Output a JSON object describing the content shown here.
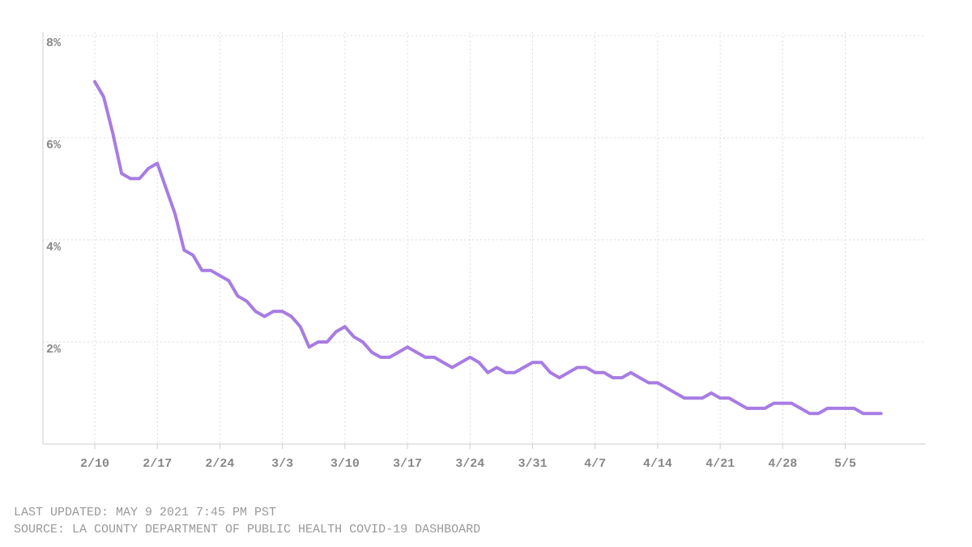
{
  "chart_data": {
    "type": "line",
    "categories": [
      "2/10",
      null,
      null,
      null,
      null,
      null,
      null,
      "2/17",
      null,
      null,
      null,
      null,
      null,
      null,
      "2/24",
      null,
      null,
      null,
      null,
      null,
      null,
      "3/3",
      null,
      null,
      null,
      null,
      null,
      null,
      "3/10",
      null,
      null,
      null,
      null,
      null,
      null,
      "3/17",
      null,
      null,
      null,
      null,
      null,
      null,
      "3/24",
      null,
      null,
      null,
      null,
      null,
      null,
      "3/31",
      null,
      null,
      null,
      null,
      null,
      null,
      "4/7",
      null,
      null,
      null,
      null,
      null,
      null,
      "4/14",
      null,
      null,
      null,
      null,
      null,
      null,
      "4/21",
      null,
      null,
      null,
      null,
      null,
      null,
      "4/28",
      null,
      null,
      null,
      null,
      null,
      null,
      "5/5",
      null,
      null,
      null,
      null
    ],
    "values": [
      7.1,
      6.8,
      6.1,
      5.3,
      5.2,
      5.2,
      5.4,
      5.5,
      5.0,
      4.5,
      3.8,
      3.7,
      3.4,
      3.4,
      3.3,
      3.2,
      2.9,
      2.8,
      2.6,
      2.5,
      2.6,
      2.6,
      2.5,
      2.3,
      1.9,
      2.0,
      2.0,
      2.2,
      2.3,
      2.1,
      2.0,
      1.8,
      1.7,
      1.7,
      1.8,
      1.9,
      1.8,
      1.7,
      1.7,
      1.6,
      1.5,
      1.6,
      1.7,
      1.6,
      1.4,
      1.5,
      1.4,
      1.4,
      1.5,
      1.6,
      1.6,
      1.4,
      1.3,
      1.4,
      1.5,
      1.5,
      1.4,
      1.4,
      1.3,
      1.3,
      1.4,
      1.3,
      1.2,
      1.2,
      1.1,
      1.0,
      0.9,
      0.9,
      0.9,
      1.0,
      0.9,
      0.9,
      0.8,
      0.7,
      0.7,
      0.7,
      0.8,
      0.8,
      0.8,
      0.7,
      0.6,
      0.6,
      0.7,
      0.7,
      0.7,
      0.7,
      0.6,
      0.6,
      0.6
    ],
    "color": "#a77ce3",
    "ylim": [
      0,
      8
    ],
    "yticks": [
      {
        "value": 2,
        "label": "2%"
      },
      {
        "value": 4,
        "label": "4%"
      },
      {
        "value": 6,
        "label": "6%"
      },
      {
        "value": 8,
        "label": "8%"
      }
    ],
    "grid": true,
    "notes": [
      "LAST UPDATED: MAY 9 2021 7:45 PM PST",
      "SOURCE: LA COUNTY DEPARTMENT OF PUBLIC HEALTH COVID-19 DASHBOARD"
    ]
  }
}
